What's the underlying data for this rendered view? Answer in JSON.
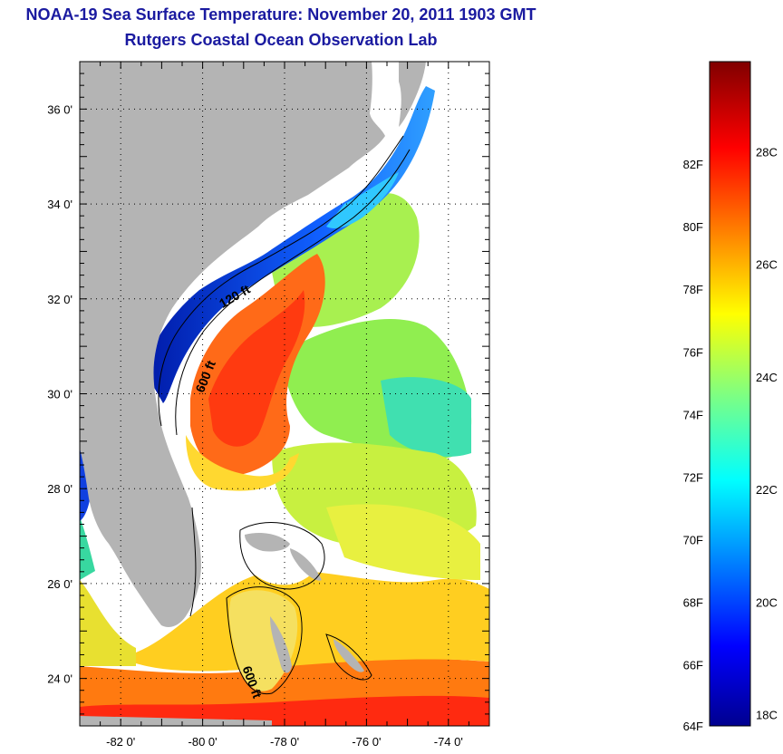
{
  "title_line1": "NOAA-19 Sea Surface Temperature:  November 20, 2011 1903 GMT",
  "title_line2": "Rutgers Coastal Ocean Observation Lab",
  "latitude_labels": [
    "36 0'",
    "34 0'",
    "32 0'",
    "30 0'",
    "28 0'",
    "26 0'",
    "24 0'"
  ],
  "latitude_values": [
    36,
    34,
    32,
    30,
    28,
    26,
    24
  ],
  "longitude_labels": [
    "-82 0'",
    "-80 0'",
    "-78 0'",
    "-76 0'",
    "-74 0'"
  ],
  "longitude_values": [
    -82,
    -80,
    -78,
    -76,
    -74
  ],
  "map_extent": {
    "lon_min": -83,
    "lon_max": -73,
    "lat_min": 23,
    "lat_max": 37
  },
  "contour_labels": [
    {
      "text": "120 ft"
    },
    {
      "text": "600 ft"
    },
    {
      "text": "600 ft"
    }
  ],
  "colorbar": {
    "fahrenheit_labels": [
      "82F",
      "80F",
      "78F",
      "76F",
      "74F",
      "72F",
      "70F",
      "68F",
      "66F",
      "64F"
    ],
    "fahrenheit_values": [
      82,
      80,
      78,
      76,
      74,
      72,
      70,
      68,
      66,
      64
    ],
    "celsius_labels": [
      "28C",
      "26C",
      "24C",
      "22C",
      "20C",
      "18C"
    ],
    "celsius_values": [
      28,
      26,
      24,
      22,
      20,
      18
    ],
    "range_c": [
      17.8,
      29.6
    ]
  },
  "colors": {
    "land": "#b4b4b4",
    "title": "#1a1aa0"
  }
}
